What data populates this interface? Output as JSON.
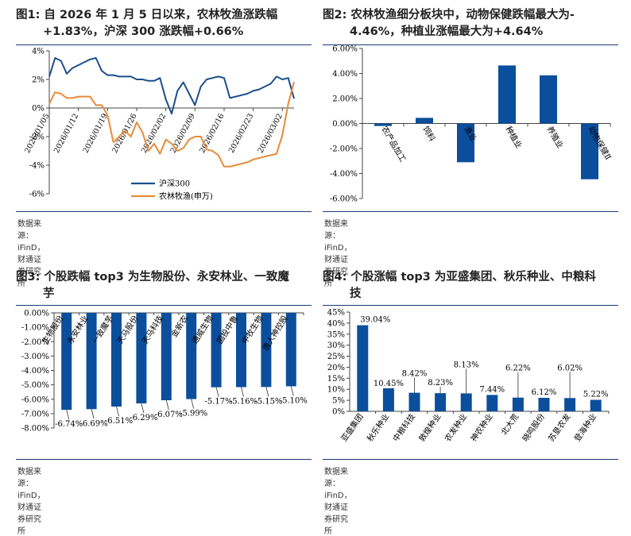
{
  "source_text": "数据来源：iFinD，财通证券研究所",
  "colors": {
    "navy": "#0b4f9c",
    "line_blue": "#1c4f8a",
    "line_orange": "#e88b3a",
    "rule": "#1a3b78"
  },
  "panels": [
    {
      "title_line1": "图1:  自 2026 年 1 月 5 日以来，农林牧渔涨跌幅",
      "title_line2": "+1.83%，沪深 300 涨跌幅+0.66%"
    },
    {
      "title_line1": "图2:  农林牧渔细分板块中，动物保健跌幅最大为-",
      "title_line2": "4.46%，种植业涨幅最大为+4.64%"
    },
    {
      "title_line1": "图3:  个股跌幅 top3 为生物股份、永安林业、一致魔",
      "title_line2": "芋"
    },
    {
      "title_line1": "图4:  个股涨幅 top3 为亚盛集团、秋乐种业、中粮科",
      "title_line2": "技"
    }
  ],
  "chart_data": [
    {
      "type": "line",
      "title": "自 2026 年 1 月 5 日以来，农林牧渔涨跌幅+1.83%，沪深 300 涨跌幅+0.66%",
      "ylim": [
        -6,
        4
      ],
      "yticks": [
        "4%",
        "2%",
        "0%",
        "-2%",
        "-4%",
        "-6%"
      ],
      "ytick_values": [
        4,
        2,
        0,
        -2,
        -4,
        -6
      ],
      "xticks": [
        "2026/01/05",
        "2026/01/12",
        "2026/01/19",
        "2026/01/26",
        "2026/02/02",
        "2026/02/09",
        "2026/02/16",
        "2026/02/23",
        "2026/03/02"
      ],
      "xtick_index": [
        0,
        5,
        10,
        15,
        20,
        25,
        30,
        35,
        40
      ],
      "n_points": 43,
      "series": [
        {
          "name": "沪深300",
          "values": [
            2.2,
            3.5,
            3.3,
            2.4,
            2.8,
            3.0,
            3.2,
            3.4,
            3.5,
            2.6,
            2.3,
            2.3,
            2.2,
            2.2,
            2.2,
            2.0,
            2.0,
            1.9,
            1.9,
            2.1,
            0.6,
            -0.4,
            1.2,
            1.8,
            1.0,
            0.2,
            1.5,
            2.0,
            2.1,
            2.2,
            2.1,
            0.7,
            0.8,
            0.9,
            1.0,
            1.2,
            1.3,
            1.5,
            1.7,
            2.2,
            2.0,
            2.1,
            0.66
          ]
        },
        {
          "name": "农林牧渔(申万)",
          "values": [
            0.3,
            1.1,
            1.0,
            0.7,
            0.7,
            0.8,
            0.8,
            0.8,
            0.2,
            0.2,
            -0.5,
            -2.4,
            -2.0,
            -1.6,
            -2.0,
            -1.0,
            -1.7,
            -3.0,
            -2.5,
            -3.2,
            -2.2,
            -2.5,
            -3.0,
            -2.8,
            -2.2,
            -2.0,
            -2.0,
            -2.9,
            -3.0,
            -3.3,
            -4.1,
            -4.1,
            -4.0,
            -3.9,
            -3.8,
            -3.6,
            -3.5,
            -3.4,
            -3.3,
            -3.2,
            -1.9,
            0.3,
            1.83
          ]
        }
      ]
    },
    {
      "type": "bar",
      "title": "农林牧渔细分板块中，动物保健跌幅最大为-4.46%，种植业涨幅最大为+4.64%",
      "categories": [
        "农产品加工",
        "饲料",
        "渔业",
        "种植业",
        "养殖业",
        "动物保健Ⅱ"
      ],
      "values": [
        -0.2,
        0.45,
        -3.1,
        4.64,
        3.85,
        -4.46
      ],
      "ylim": [
        -6,
        6
      ],
      "yticks": [
        "6.00%",
        "4.00%",
        "2.00%",
        "0.00%",
        "-2.00%",
        "-4.00%",
        "-6.00%"
      ],
      "ytick_values": [
        6,
        4,
        2,
        0,
        -2,
        -4,
        -6
      ]
    },
    {
      "type": "bar",
      "title": "个股跌幅 top3 为生物股份、永安林业、一致魔芋",
      "categories": [
        "生物股份",
        "永安林业",
        "一致魔芋",
        "天马股份",
        "天马科技",
        "金新农",
        "通威生物",
        "国投中鲁",
        "中牧生物",
        "唐人神控股"
      ],
      "values": [
        -6.74,
        -6.69,
        -6.51,
        -6.29,
        -6.07,
        -5.99,
        -5.17,
        -5.16,
        -5.15,
        -5.1
      ],
      "labels": [
        "-6.74%",
        "-6.69%",
        "-6.51%",
        "-6.29%",
        "-6.07%",
        "-5.99%",
        "-5.17%",
        "-5.16%",
        "-5.15%",
        "-5.10%"
      ],
      "ylim": [
        -8,
        0
      ],
      "yticks": [
        "0.00%",
        "-1.00%",
        "-2.00%",
        "-3.00%",
        "-4.00%",
        "-5.00%",
        "-6.00%",
        "-7.00%",
        "-8.00%"
      ],
      "ytick_values": [
        0,
        -1,
        -2,
        -3,
        -4,
        -5,
        -6,
        -7,
        -8
      ]
    },
    {
      "type": "bar",
      "title": "个股涨幅 top3 为亚盛集团、秋乐种业、中粮科技",
      "categories": [
        "亚盛集团",
        "秋乐种业",
        "中粮科技",
        "敦煌种业",
        "农发种业",
        "神农种业",
        "北大荒",
        "晓鸣股份",
        "苏垦农发",
        "登海种业"
      ],
      "values": [
        39.04,
        10.45,
        8.42,
        8.23,
        8.13,
        7.44,
        6.22,
        6.12,
        6.02,
        5.22
      ],
      "labels": [
        "39.04%",
        "10.45%",
        "8.42%",
        "8.23%",
        "8.13%",
        "7.44%",
        "6.22%",
        "6.12%",
        "6.02%",
        "5.22%"
      ],
      "ylim": [
        0,
        45
      ],
      "yticks": [
        "45%",
        "40%",
        "35%",
        "30%",
        "25%",
        "20%",
        "15%",
        "10%",
        "5%",
        "0%"
      ],
      "ytick_values": [
        45,
        40,
        35,
        30,
        25,
        20,
        15,
        10,
        5,
        0
      ]
    }
  ]
}
